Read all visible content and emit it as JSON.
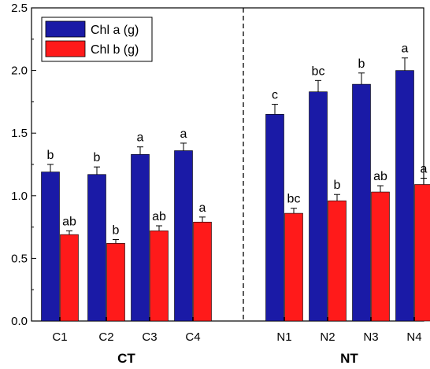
{
  "chart_data": {
    "type": "bar",
    "categories": [
      "C1",
      "C2",
      "C3",
      "C4",
      "N1",
      "N2",
      "N3",
      "N4"
    ],
    "groups": [
      {
        "label": "CT",
        "categories": [
          "C1",
          "C2",
          "C3",
          "C4"
        ]
      },
      {
        "label": "NT",
        "categories": [
          "N1",
          "N2",
          "N3",
          "N4"
        ]
      }
    ],
    "series": [
      {
        "name": "Chl a (g)",
        "color": "#1a1aa6",
        "values": [
          1.19,
          1.17,
          1.33,
          1.36,
          1.65,
          1.83,
          1.89,
          2.0
        ],
        "errors": [
          0.06,
          0.06,
          0.06,
          0.06,
          0.08,
          0.09,
          0.09,
          0.1
        ],
        "letters": [
          "b",
          "b",
          "a",
          "a",
          "c",
          "bc",
          "b",
          "a"
        ]
      },
      {
        "name": "Chl b (g)",
        "color": "#ff1a1a",
        "values": [
          0.69,
          0.62,
          0.72,
          0.79,
          0.86,
          0.96,
          1.03,
          1.09
        ],
        "errors": [
          0.03,
          0.03,
          0.04,
          0.04,
          0.04,
          0.05,
          0.05,
          0.05
        ],
        "letters": [
          "ab",
          "b",
          "ab",
          "a",
          "bc",
          "b",
          "ab",
          "a"
        ]
      }
    ],
    "ylim": [
      0,
      2.5
    ],
    "yticks": [
      "0.0",
      "0.5",
      "1.0",
      "1.5",
      "2.0",
      "2.5"
    ],
    "divider": "dashed",
    "legend_position": "top-left"
  }
}
